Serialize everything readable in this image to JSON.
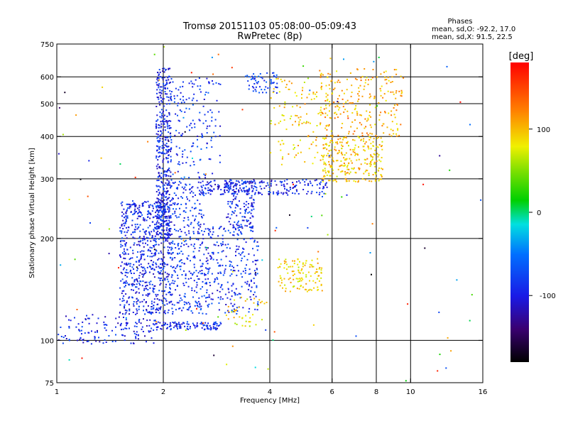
{
  "chart_data": {
    "type": "scatter",
    "title": "Tromsø 20151103 05:08:00–05:09:43",
    "subtitle": "RwPretec (8p)",
    "xlabel": "Frequency [MHz]",
    "ylabel": "Stationary phase Virtual Height [km]",
    "x_scale": "log",
    "y_scale": "log",
    "xlim": [
      1,
      16
    ],
    "ylim": [
      75,
      750
    ],
    "x_ticks": [
      1,
      2,
      4,
      6,
      8,
      10,
      16
    ],
    "y_ticks": [
      75,
      100,
      200,
      300,
      400,
      500,
      600,
      750
    ],
    "x_gridlines": [
      2,
      4,
      6,
      8,
      10
    ],
    "y_gridlines": [
      100,
      200,
      300,
      400,
      500,
      600
    ],
    "grid": true,
    "phase_box": {
      "heading": "Phases",
      "line_o": "mean, sd,O: -92.2, 17.0",
      "line_x": "mean, sd,X:  91.5, 22.5"
    },
    "colorbar": {
      "unit": "[deg]",
      "ticks": [
        100,
        0,
        -100
      ],
      "range": [
        -180,
        180
      ],
      "colormap": "rainbow"
    },
    "series": [
      {
        "mode": "O",
        "clusters": [
          {
            "x": [
              1.0,
              1.9
            ],
            "y": [
              98,
              120
            ],
            "n": 140,
            "phase": -95
          },
          {
            "x": [
              1.9,
              2.9
            ],
            "y": [
              108,
              114
            ],
            "n": 110,
            "phase": -92
          },
          {
            "x": [
              1.5,
              2.1
            ],
            "y": [
              120,
              260
            ],
            "n": 700,
            "phase": -92
          },
          {
            "x": [
              1.9,
              2.1
            ],
            "y": [
              200,
              640
            ],
            "n": 450,
            "phase": -95
          },
          {
            "x": [
              2.1,
              2.6
            ],
            "y": [
              120,
              300
            ],
            "n": 300,
            "phase": -85
          },
          {
            "x": [
              2.6,
              3.7
            ],
            "y": [
              120,
              220
            ],
            "n": 280,
            "phase": -88
          },
          {
            "x": [
              3.0,
              3.6
            ],
            "y": [
              215,
              300
            ],
            "n": 140,
            "phase": -90
          },
          {
            "x": [
              2.5,
              5.8
            ],
            "y": [
              270,
              300
            ],
            "n": 240,
            "phase": -95
          },
          {
            "x": [
              2.1,
              2.9
            ],
            "y": [
              300,
              600
            ],
            "n": 150,
            "phase": -85
          },
          {
            "x": [
              3.4,
              4.2
            ],
            "y": [
              540,
              620
            ],
            "n": 60,
            "phase": -80
          }
        ]
      },
      {
        "mode": "X",
        "clusters": [
          {
            "x": [
              3.0,
              3.9
            ],
            "y": [
              110,
              135
            ],
            "n": 40,
            "phase": 85
          },
          {
            "x": [
              4.2,
              5.6
            ],
            "y": [
              140,
              175
            ],
            "n": 120,
            "phase": 90
          },
          {
            "x": [
              5.6,
              8.3
            ],
            "y": [
              295,
              400
            ],
            "n": 260,
            "phase": 95
          },
          {
            "x": [
              5.5,
              9.5
            ],
            "y": [
              400,
              640
            ],
            "n": 240,
            "phase": 105
          },
          {
            "x": [
              4.0,
              6.0
            ],
            "y": [
              330,
              600
            ],
            "n": 120,
            "phase": 95
          }
        ]
      },
      {
        "mode": "noise",
        "clusters": [
          {
            "x": [
              1.0,
              16.0
            ],
            "y": [
              75,
              750
            ],
            "n": 120,
            "phase": 0,
            "spread": 180
          }
        ]
      }
    ]
  }
}
